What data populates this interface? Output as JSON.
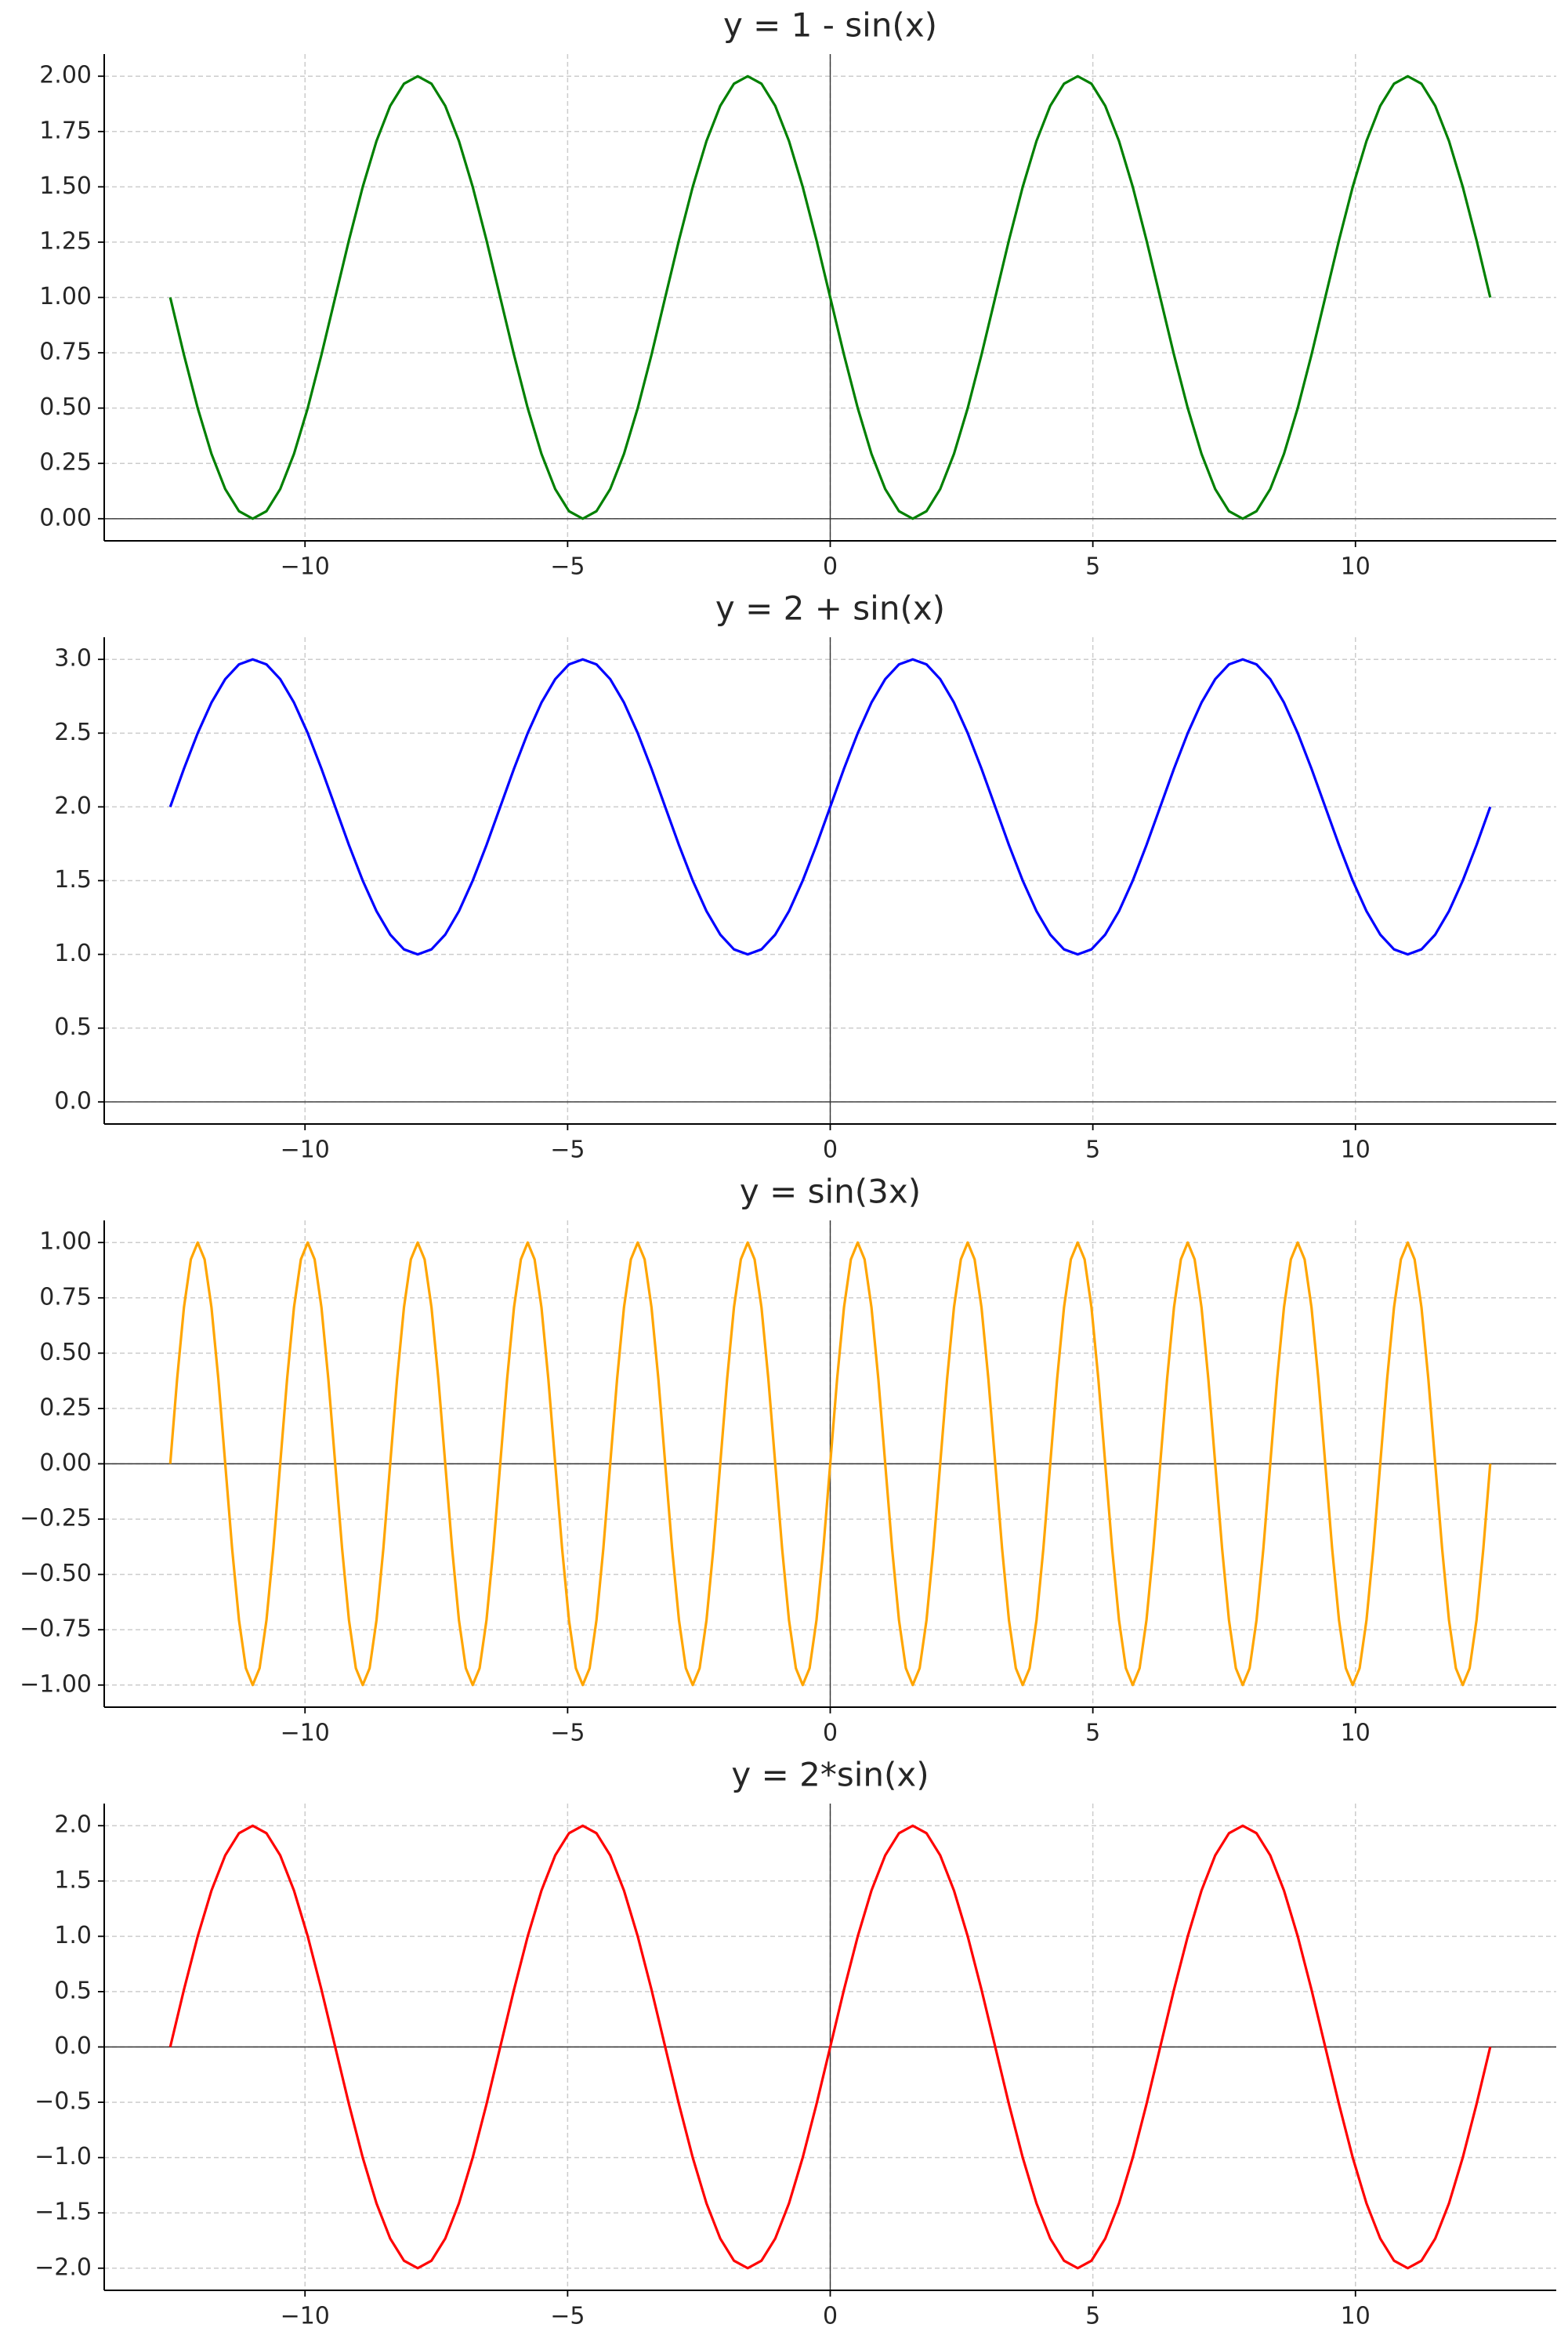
{
  "chart_data": [
    {
      "type": "line",
      "title": "y = 1 - sin(x)",
      "color": "#008000",
      "grid": true,
      "xlim": [
        -13.823,
        13.823
      ],
      "ylim": [
        -0.1,
        2.1
      ],
      "xticks": [
        {
          "value": -10,
          "label": "−10"
        },
        {
          "value": -5,
          "label": "−5"
        },
        0,
        5,
        10
      ],
      "yticks": [
        {
          "value": 0,
          "label": "0.00"
        },
        {
          "value": 0.25,
          "label": "0.25"
        },
        {
          "value": 0.5,
          "label": "0.50"
        },
        {
          "value": 0.75,
          "label": "0.75"
        },
        {
          "value": 1,
          "label": "1.00"
        },
        {
          "value": 1.25,
          "label": "1.25"
        },
        {
          "value": 1.5,
          "label": "1.50"
        },
        {
          "value": 1.75,
          "label": "1.75"
        },
        {
          "value": 2,
          "label": "2.00"
        }
      ],
      "x": [
        -12.566,
        -12.305,
        -12.043,
        -11.781,
        -11.519,
        -11.257,
        -10.996,
        -10.734,
        -10.472,
        -10.21,
        -9.948,
        -9.687,
        -9.425,
        -9.163,
        -8.901,
        -8.639,
        -8.378,
        -8.116,
        -7.854,
        -7.592,
        -7.33,
        -7.069,
        -6.807,
        -6.545,
        -6.283,
        -6.021,
        -5.76,
        -5.498,
        -5.236,
        -4.974,
        -4.712,
        -4.451,
        -4.189,
        -3.927,
        -3.665,
        -3.403,
        -3.142,
        -2.88,
        -2.618,
        -2.356,
        -2.094,
        -1.833,
        -1.571,
        -1.309,
        -1.047,
        -0.785,
        -0.524,
        -0.262,
        0,
        0.262,
        0.524,
        0.785,
        1.047,
        1.309,
        1.571,
        1.833,
        2.094,
        2.356,
        2.618,
        2.88,
        3.142,
        3.403,
        3.665,
        3.927,
        4.189,
        4.451,
        4.712,
        4.974,
        5.236,
        5.498,
        5.76,
        6.021,
        6.283,
        6.545,
        6.807,
        7.069,
        7.33,
        7.592,
        7.854,
        8.116,
        8.378,
        8.639,
        8.901,
        9.163,
        9.425,
        9.687,
        9.948,
        10.21,
        10.472,
        10.734,
        10.996,
        11.257,
        11.519,
        11.781,
        12.043,
        12.305,
        12.566
      ],
      "values": [
        1,
        0.741,
        0.5,
        0.293,
        0.134,
        0.034,
        0,
        0.034,
        0.134,
        0.293,
        0.5,
        0.741,
        1,
        1.259,
        1.5,
        1.707,
        1.866,
        1.966,
        2,
        1.966,
        1.866,
        1.707,
        1.5,
        1.259,
        1,
        0.741,
        0.5,
        0.293,
        0.134,
        0.034,
        0,
        0.034,
        0.134,
        0.293,
        0.5,
        0.741,
        1,
        1.259,
        1.5,
        1.707,
        1.866,
        1.966,
        2,
        1.966,
        1.866,
        1.707,
        1.5,
        1.259,
        1,
        0.741,
        0.5,
        0.293,
        0.134,
        0.034,
        0,
        0.034,
        0.134,
        0.293,
        0.5,
        0.741,
        1,
        1.259,
        1.5,
        1.707,
        1.866,
        1.966,
        2,
        1.966,
        1.866,
        1.707,
        1.5,
        1.259,
        1,
        0.741,
        0.5,
        0.293,
        0.134,
        0.034,
        0,
        0.034,
        0.134,
        0.293,
        0.5,
        0.741,
        1,
        1.259,
        1.5,
        1.707,
        1.866,
        1.966,
        2,
        1.966,
        1.866,
        1.707,
        1.5,
        1.259,
        1
      ]
    },
    {
      "type": "line",
      "title": "y = 2 + sin(x)",
      "color": "#0000ff",
      "grid": true,
      "xlim": [
        -13.823,
        13.823
      ],
      "ylim": [
        -0.15,
        3.15
      ],
      "xticks": [
        {
          "value": -10,
          "label": "−10"
        },
        {
          "value": -5,
          "label": "−5"
        },
        0,
        5,
        10
      ],
      "yticks": [
        {
          "value": 0,
          "label": "0.0"
        },
        0.5,
        {
          "value": 1,
          "label": "1.0"
        },
        1.5,
        {
          "value": 2,
          "label": "2.0"
        },
        2.5,
        {
          "value": 3,
          "label": "3.0"
        }
      ],
      "x": [
        -12.566,
        -12.305,
        -12.043,
        -11.781,
        -11.519,
        -11.257,
        -10.996,
        -10.734,
        -10.472,
        -10.21,
        -9.948,
        -9.687,
        -9.425,
        -9.163,
        -8.901,
        -8.639,
        -8.378,
        -8.116,
        -7.854,
        -7.592,
        -7.33,
        -7.069,
        -6.807,
        -6.545,
        -6.283,
        -6.021,
        -5.76,
        -5.498,
        -5.236,
        -4.974,
        -4.712,
        -4.451,
        -4.189,
        -3.927,
        -3.665,
        -3.403,
        -3.142,
        -2.88,
        -2.618,
        -2.356,
        -2.094,
        -1.833,
        -1.571,
        -1.309,
        -1.047,
        -0.785,
        -0.524,
        -0.262,
        0,
        0.262,
        0.524,
        0.785,
        1.047,
        1.309,
        1.571,
        1.833,
        2.094,
        2.356,
        2.618,
        2.88,
        3.142,
        3.403,
        3.665,
        3.927,
        4.189,
        4.451,
        4.712,
        4.974,
        5.236,
        5.498,
        5.76,
        6.021,
        6.283,
        6.545,
        6.807,
        7.069,
        7.33,
        7.592,
        7.854,
        8.116,
        8.378,
        8.639,
        8.901,
        9.163,
        9.425,
        9.687,
        9.948,
        10.21,
        10.472,
        10.734,
        10.996,
        11.257,
        11.519,
        11.781,
        12.043,
        12.305,
        12.566
      ],
      "values": [
        2,
        2.259,
        2.5,
        2.707,
        2.866,
        2.966,
        3,
        2.966,
        2.866,
        2.707,
        2.5,
        2.259,
        2,
        1.741,
        1.5,
        1.293,
        1.134,
        1.034,
        1,
        1.034,
        1.134,
        1.293,
        1.5,
        1.741,
        2,
        2.259,
        2.5,
        2.707,
        2.866,
        2.966,
        3,
        2.966,
        2.866,
        2.707,
        2.5,
        2.259,
        2,
        1.741,
        1.5,
        1.293,
        1.134,
        1.034,
        1,
        1.034,
        1.134,
        1.293,
        1.5,
        1.741,
        2,
        2.259,
        2.5,
        2.707,
        2.866,
        2.966,
        3,
        2.966,
        2.866,
        2.707,
        2.5,
        2.259,
        2,
        1.741,
        1.5,
        1.293,
        1.134,
        1.034,
        1,
        1.034,
        1.134,
        1.293,
        1.5,
        1.741,
        2,
        2.259,
        2.5,
        2.707,
        2.866,
        2.966,
        3,
        2.966,
        2.866,
        2.707,
        2.5,
        2.259,
        2,
        1.741,
        1.5,
        1.293,
        1.134,
        1.034,
        1,
        1.034,
        1.134,
        1.293,
        1.5,
        1.741,
        2
      ]
    },
    {
      "type": "line",
      "title": "y = sin(3x)",
      "color": "#ffa500",
      "grid": true,
      "xlim": [
        -13.823,
        13.823
      ],
      "ylim": [
        -1.1,
        1.1
      ],
      "xticks": [
        {
          "value": -10,
          "label": "−10"
        },
        {
          "value": -5,
          "label": "−5"
        },
        0,
        5,
        10
      ],
      "yticks": [
        {
          "value": -1,
          "label": "−1.00"
        },
        {
          "value": -0.75,
          "label": "−0.75"
        },
        {
          "value": -0.5,
          "label": "−0.50"
        },
        {
          "value": -0.25,
          "label": "−0.25"
        },
        {
          "value": 0,
          "label": "0.00"
        },
        {
          "value": 0.25,
          "label": "0.25"
        },
        {
          "value": 0.5,
          "label": "0.50"
        },
        {
          "value": 0.75,
          "label": "0.75"
        },
        {
          "value": 1,
          "label": "1.00"
        }
      ],
      "x": [
        -12.566,
        -12.435,
        -12.305,
        -12.174,
        -12.043,
        -11.912,
        -11.781,
        -11.65,
        -11.519,
        -11.388,
        -11.257,
        -11.126,
        -10.996,
        -10.865,
        -10.734,
        -10.603,
        -10.472,
        -10.341,
        -10.21,
        -10.079,
        -9.948,
        -9.817,
        -9.687,
        -9.556,
        -9.425,
        -9.294,
        -9.163,
        -9.032,
        -8.901,
        -8.77,
        -8.639,
        -8.508,
        -8.378,
        -8.247,
        -8.116,
        -7.985,
        -7.854,
        -7.723,
        -7.592,
        -7.461,
        -7.33,
        -7.199,
        -7.069,
        -6.938,
        -6.807,
        -6.676,
        -6.545,
        -6.414,
        -6.283,
        -6.152,
        -6.021,
        -5.89,
        -5.76,
        -5.629,
        -5.498,
        -5.367,
        -5.236,
        -5.105,
        -4.974,
        -4.843,
        -4.712,
        -4.581,
        -4.451,
        -4.32,
        -4.189,
        -4.058,
        -3.927,
        -3.796,
        -3.665,
        -3.534,
        -3.403,
        -3.272,
        -3.142,
        -3.011,
        -2.88,
        -2.749,
        -2.618,
        -2.487,
        -2.356,
        -2.225,
        -2.094,
        -1.963,
        -1.833,
        -1.702,
        -1.571,
        -1.44,
        -1.309,
        -1.178,
        -1.047,
        -0.916,
        -0.785,
        -0.654,
        -0.524,
        -0.393,
        -0.262,
        -0.131,
        0,
        0.131,
        0.262,
        0.393,
        0.524,
        0.654,
        0.785,
        0.916,
        1.047,
        1.178,
        1.309,
        1.44,
        1.571,
        1.702,
        1.833,
        1.963,
        2.094,
        2.225,
        2.356,
        2.487,
        2.618,
        2.749,
        2.88,
        3.011,
        3.142,
        3.272,
        3.403,
        3.534,
        3.665,
        3.796,
        3.927,
        4.058,
        4.189,
        4.32,
        4.451,
        4.581,
        4.712,
        4.843,
        4.974,
        5.105,
        5.236,
        5.367,
        5.498,
        5.629,
        5.76,
        5.89,
        6.021,
        6.152,
        6.283,
        6.414,
        6.545,
        6.676,
        6.807,
        6.938,
        7.069,
        7.199,
        7.33,
        7.461,
        7.592,
        7.723,
        7.854,
        7.985,
        8.116,
        8.247,
        8.378,
        8.508,
        8.639,
        8.77,
        8.901,
        9.032,
        9.163,
        9.294,
        9.425,
        9.556,
        9.687,
        9.817,
        9.948,
        10.079,
        10.21,
        10.341,
        10.472,
        10.603,
        10.734,
        10.865,
        10.996,
        11.126,
        11.257,
        11.388,
        11.519,
        11.65,
        11.781,
        11.912,
        12.043,
        12.174,
        12.305,
        12.435,
        12.566
      ],
      "values": [
        0,
        0.383,
        0.707,
        0.924,
        1,
        0.924,
        0.707,
        0.383,
        0,
        -0.383,
        -0.707,
        -0.924,
        -1,
        -0.924,
        -0.707,
        -0.383,
        0,
        0.383,
        0.707,
        0.924,
        1,
        0.924,
        0.707,
        0.383,
        0,
        -0.383,
        -0.707,
        -0.924,
        -1,
        -0.924,
        -0.707,
        -0.383,
        0,
        0.383,
        0.707,
        0.924,
        1,
        0.924,
        0.707,
        0.383,
        0,
        -0.383,
        -0.707,
        -0.924,
        -1,
        -0.924,
        -0.707,
        -0.383,
        0,
        0.383,
        0.707,
        0.924,
        1,
        0.924,
        0.707,
        0.383,
        0,
        -0.383,
        -0.707,
        -0.924,
        -1,
        -0.924,
        -0.707,
        -0.383,
        0,
        0.383,
        0.707,
        0.924,
        1,
        0.924,
        0.707,
        0.383,
        0,
        -0.383,
        -0.707,
        -0.924,
        -1,
        -0.924,
        -0.707,
        -0.383,
        0,
        0.383,
        0.707,
        0.924,
        1,
        0.924,
        0.707,
        0.383,
        0,
        -0.383,
        -0.707,
        -0.924,
        -1,
        -0.924,
        -0.707,
        -0.383,
        0,
        0.383,
        0.707,
        0.924,
        1,
        0.924,
        0.707,
        0.383,
        0,
        -0.383,
        -0.707,
        -0.924,
        -1,
        -0.924,
        -0.707,
        -0.383,
        0,
        0.383,
        0.707,
        0.924,
        1,
        0.924,
        0.707,
        0.383,
        0,
        -0.383,
        -0.707,
        -0.924,
        -1,
        -0.924,
        -0.707,
        -0.383,
        0,
        0.383,
        0.707,
        0.924,
        1,
        0.924,
        0.707,
        0.383,
        0,
        -0.383,
        -0.707,
        -0.924,
        -1,
        -0.924,
        -0.707,
        -0.383,
        0,
        0.383,
        0.707,
        0.924,
        1,
        0.924,
        0.707,
        0.383,
        0,
        -0.383,
        -0.707,
        -0.924,
        -1,
        -0.924,
        -0.707,
        -0.383,
        0,
        0.383,
        0.707,
        0.924,
        1,
        0.924,
        0.707,
        0.383,
        0,
        -0.383,
        -0.707,
        -0.924,
        -1,
        -0.924,
        -0.707,
        -0.383,
        0,
        0.383,
        0.707,
        0.924,
        1,
        0.924,
        0.707,
        0.383,
        0,
        -0.383,
        -0.707,
        -0.924,
        -1,
        -0.924,
        -0.707,
        -0.383,
        0
      ]
    },
    {
      "type": "line",
      "title": "y = 2*sin(x)",
      "color": "#ff0000",
      "grid": true,
      "xlim": [
        -13.823,
        13.823
      ],
      "ylim": [
        -2.2,
        2.2
      ],
      "xticks": [
        {
          "value": -10,
          "label": "−10"
        },
        {
          "value": -5,
          "label": "−5"
        },
        0,
        5,
        10
      ],
      "yticks": [
        {
          "value": -2,
          "label": "−2.0"
        },
        {
          "value": -1.5,
          "label": "−1.5"
        },
        {
          "value": -1,
          "label": "−1.0"
        },
        {
          "value": -0.5,
          "label": "−0.5"
        },
        {
          "value": 0,
          "label": "0.0"
        },
        0.5,
        {
          "value": 1,
          "label": "1.0"
        },
        1.5,
        {
          "value": 2,
          "label": "2.0"
        }
      ],
      "x": [
        -12.566,
        -12.305,
        -12.043,
        -11.781,
        -11.519,
        -11.257,
        -10.996,
        -10.734,
        -10.472,
        -10.21,
        -9.948,
        -9.687,
        -9.425,
        -9.163,
        -8.901,
        -8.639,
        -8.378,
        -8.116,
        -7.854,
        -7.592,
        -7.33,
        -7.069,
        -6.807,
        -6.545,
        -6.283,
        -6.021,
        -5.76,
        -5.498,
        -5.236,
        -4.974,
        -4.712,
        -4.451,
        -4.189,
        -3.927,
        -3.665,
        -3.403,
        -3.142,
        -2.88,
        -2.618,
        -2.356,
        -2.094,
        -1.833,
        -1.571,
        -1.309,
        -1.047,
        -0.785,
        -0.524,
        -0.262,
        0,
        0.262,
        0.524,
        0.785,
        1.047,
        1.309,
        1.571,
        1.833,
        2.094,
        2.356,
        2.618,
        2.88,
        3.142,
        3.403,
        3.665,
        3.927,
        4.189,
        4.451,
        4.712,
        4.974,
        5.236,
        5.498,
        5.76,
        6.021,
        6.283,
        6.545,
        6.807,
        7.069,
        7.33,
        7.592,
        7.854,
        8.116,
        8.378,
        8.639,
        8.901,
        9.163,
        9.425,
        9.687,
        9.948,
        10.21,
        10.472,
        10.734,
        10.996,
        11.257,
        11.519,
        11.781,
        12.043,
        12.305,
        12.566
      ],
      "values": [
        0,
        0.518,
        1,
        1.414,
        1.732,
        1.932,
        2,
        1.932,
        1.732,
        1.414,
        1,
        0.518,
        0,
        -0.518,
        -1,
        -1.414,
        -1.732,
        -1.932,
        -2,
        -1.932,
        -1.732,
        -1.414,
        -1,
        -0.518,
        0,
        0.518,
        1,
        1.414,
        1.732,
        1.932,
        2,
        1.932,
        1.732,
        1.414,
        1,
        0.518,
        0,
        -0.518,
        -1,
        -1.414,
        -1.732,
        -1.932,
        -2,
        -1.932,
        -1.732,
        -1.414,
        -1,
        -0.518,
        0,
        0.518,
        1,
        1.414,
        1.732,
        1.932,
        2,
        1.932,
        1.732,
        1.414,
        1,
        0.518,
        0,
        -0.518,
        -1,
        -1.414,
        -1.732,
        -1.932,
        -2,
        -1.932,
        -1.732,
        -1.414,
        -1,
        -0.518,
        0,
        0.518,
        1,
        1.414,
        1.732,
        1.932,
        2,
        1.932,
        1.732,
        1.414,
        1,
        0.518,
        0,
        -0.518,
        -1,
        -1.414,
        -1.732,
        -1.932,
        -2,
        -1.932,
        -1.732,
        -1.414,
        -1,
        -0.518,
        0
      ]
    }
  ]
}
